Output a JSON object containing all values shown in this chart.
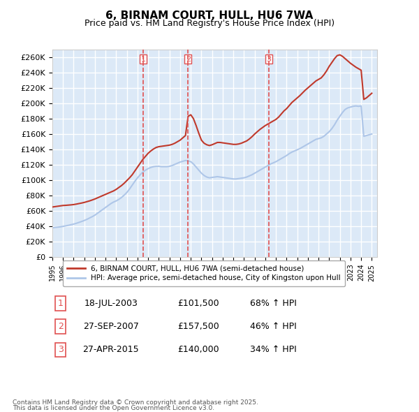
{
  "title": "6, BIRNAM COURT, HULL, HU6 7WA",
  "subtitle": "Price paid vs. HM Land Registry's House Price Index (HPI)",
  "ylabel": "",
  "ylim": [
    0,
    270000
  ],
  "yticks": [
    0,
    20000,
    40000,
    60000,
    80000,
    100000,
    120000,
    140000,
    160000,
    180000,
    200000,
    220000,
    240000,
    260000
  ],
  "ytick_labels": [
    "£0",
    "£20K",
    "£40K",
    "£60K",
    "£80K",
    "£100K",
    "£120K",
    "£140K",
    "£160K",
    "£180K",
    "£200K",
    "£220K",
    "£240K",
    "£260K"
  ],
  "xlim_start": 1995.0,
  "xlim_end": 2025.5,
  "sale_dates": [
    2003.54,
    2007.74,
    2015.32
  ],
  "sale_prices": [
    101500,
    157500,
    140000
  ],
  "sale_labels": [
    "1",
    "2",
    "3"
  ],
  "sale_date_str": [
    "18-JUL-2003",
    "27-SEP-2007",
    "27-APR-2015"
  ],
  "sale_price_str": [
    "£101,500",
    "£157,500",
    "£140,000"
  ],
  "sale_hpi_str": [
    "68% ↑ HPI",
    "46% ↑ HPI",
    "34% ↑ HPI"
  ],
  "hpi_line_color": "#aec6e8",
  "price_line_color": "#c0392b",
  "vline_color": "#e05050",
  "background_color": "#dce9f7",
  "plot_bg_color": "#dce9f7",
  "grid_color": "#ffffff",
  "legend_label_red": "6, BIRNAM COURT, HULL, HU6 7WA (semi-detached house)",
  "legend_label_blue": "HPI: Average price, semi-detached house, City of Kingston upon Hull",
  "footer1": "Contains HM Land Registry data © Crown copyright and database right 2025.",
  "footer2": "This data is licensed under the Open Government Licence v3.0.",
  "hpi_x": [
    1995,
    1995.25,
    1995.5,
    1995.75,
    1996,
    1996.25,
    1996.5,
    1996.75,
    1997,
    1997.25,
    1997.5,
    1997.75,
    1998,
    1998.25,
    1998.5,
    1998.75,
    1999,
    1999.25,
    1999.5,
    1999.75,
    2000,
    2000.25,
    2000.5,
    2000.75,
    2001,
    2001.25,
    2001.5,
    2001.75,
    2002,
    2002.25,
    2002.5,
    2002.75,
    2003,
    2003.25,
    2003.5,
    2003.75,
    2004,
    2004.25,
    2004.5,
    2004.75,
    2005,
    2005.25,
    2005.5,
    2005.75,
    2006,
    2006.25,
    2006.5,
    2006.75,
    2007,
    2007.25,
    2007.5,
    2007.75,
    2008,
    2008.25,
    2008.5,
    2008.75,
    2009,
    2009.25,
    2009.5,
    2009.75,
    2010,
    2010.25,
    2010.5,
    2010.75,
    2011,
    2011.25,
    2011.5,
    2011.75,
    2012,
    2012.25,
    2012.5,
    2012.75,
    2013,
    2013.25,
    2013.5,
    2013.75,
    2014,
    2014.25,
    2014.5,
    2014.75,
    2015,
    2015.25,
    2015.5,
    2015.75,
    2016,
    2016.25,
    2016.5,
    2016.75,
    2017,
    2017.25,
    2017.5,
    2017.75,
    2018,
    2018.25,
    2018.5,
    2018.75,
    2019,
    2019.25,
    2019.5,
    2019.75,
    2020,
    2020.25,
    2020.5,
    2020.75,
    2021,
    2021.25,
    2021.5,
    2021.75,
    2022,
    2022.25,
    2022.5,
    2022.75,
    2023,
    2023.25,
    2023.5,
    2023.75,
    2024,
    2024.25,
    2024.5,
    2024.75,
    2025
  ],
  "hpi_y": [
    38000,
    38500,
    38800,
    39200,
    39800,
    40500,
    41200,
    42000,
    42800,
    43800,
    45000,
    46200,
    47500,
    49000,
    50800,
    52500,
    54500,
    57000,
    59500,
    62000,
    64500,
    67000,
    69500,
    71500,
    73000,
    75000,
    77500,
    80500,
    84000,
    88500,
    93500,
    98500,
    103000,
    107000,
    110500,
    113000,
    115000,
    116500,
    117500,
    118000,
    118000,
    117500,
    117500,
    117500,
    118000,
    119000,
    120500,
    122000,
    123500,
    124500,
    125500,
    125000,
    124000,
    121000,
    117000,
    113000,
    109000,
    106000,
    104000,
    103000,
    103500,
    104000,
    104500,
    104000,
    103500,
    103000,
    102500,
    102000,
    101500,
    101500,
    102000,
    102500,
    103000,
    104000,
    105500,
    107000,
    109000,
    111000,
    113000,
    115000,
    117000,
    119000,
    121000,
    122500,
    124000,
    126000,
    128000,
    130000,
    132000,
    134500,
    136500,
    138000,
    139500,
    141000,
    143000,
    145000,
    147000,
    149000,
    151000,
    153000,
    154000,
    155000,
    157000,
    160000,
    163000,
    167000,
    172000,
    178000,
    183000,
    188000,
    192000,
    194000,
    195000,
    196000,
    196500,
    196000,
    196500,
    157000,
    158000,
    159000,
    160000
  ],
  "price_x": [
    1995,
    1995.25,
    1995.5,
    1995.75,
    1996,
    1996.25,
    1996.5,
    1996.75,
    1997,
    1997.25,
    1997.5,
    1997.75,
    1998,
    1998.25,
    1998.5,
    1998.75,
    1999,
    1999.25,
    1999.5,
    1999.75,
    2000,
    2000.25,
    2000.5,
    2000.75,
    2001,
    2001.25,
    2001.5,
    2001.75,
    2002,
    2002.25,
    2002.5,
    2002.75,
    2003,
    2003.25,
    2003.5,
    2003.75,
    2004,
    2004.25,
    2004.5,
    2004.75,
    2005,
    2005.25,
    2005.5,
    2005.75,
    2006,
    2006.25,
    2006.5,
    2006.75,
    2007,
    2007.25,
    2007.5,
    2007.75,
    2008,
    2008.25,
    2008.5,
    2008.75,
    2009,
    2009.25,
    2009.5,
    2009.75,
    2010,
    2010.25,
    2010.5,
    2010.75,
    2011,
    2011.25,
    2011.5,
    2011.75,
    2012,
    2012.25,
    2012.5,
    2012.75,
    2013,
    2013.25,
    2013.5,
    2013.75,
    2014,
    2014.25,
    2014.5,
    2014.75,
    2015,
    2015.25,
    2015.5,
    2015.75,
    2016,
    2016.25,
    2016.5,
    2016.75,
    2017,
    2017.25,
    2017.5,
    2017.75,
    2018,
    2018.25,
    2018.5,
    2018.75,
    2019,
    2019.25,
    2019.5,
    2019.75,
    2020,
    2020.25,
    2020.5,
    2020.75,
    2021,
    2021.25,
    2021.5,
    2021.75,
    2022,
    2022.25,
    2022.5,
    2022.75,
    2023,
    2023.25,
    2023.5,
    2023.75,
    2024,
    2024.25,
    2024.5,
    2024.75,
    2025
  ],
  "price_y": [
    65000,
    65500,
    66000,
    66500,
    67000,
    67200,
    67500,
    67800,
    68200,
    68800,
    69500,
    70200,
    71000,
    72000,
    73000,
    74200,
    75500,
    77000,
    78500,
    80000,
    81500,
    83000,
    84500,
    86000,
    88000,
    90500,
    93000,
    96000,
    99500,
    103000,
    107000,
    112000,
    117000,
    122000,
    127000,
    131000,
    135000,
    138000,
    140500,
    142500,
    143500,
    144000,
    144500,
    145000,
    145500,
    146500,
    148000,
    150000,
    152000,
    155000,
    158000,
    183000,
    185000,
    180000,
    171000,
    161000,
    152000,
    148000,
    146000,
    145000,
    146000,
    147500,
    149000,
    149000,
    148500,
    148000,
    147500,
    147000,
    146500,
    146500,
    147000,
    148000,
    149500,
    151000,
    153500,
    156500,
    160000,
    163000,
    166000,
    168500,
    171000,
    173000,
    175000,
    177000,
    179000,
    182000,
    186000,
    190000,
    193000,
    197000,
    201000,
    204000,
    207000,
    210000,
    213500,
    217000,
    220000,
    223000,
    226000,
    229000,
    231000,
    233000,
    237000,
    242000,
    248000,
    253000,
    258000,
    262000,
    263000,
    261000,
    258000,
    255000,
    252000,
    249500,
    247000,
    245000,
    243000,
    205000,
    207000,
    210000,
    213000
  ]
}
